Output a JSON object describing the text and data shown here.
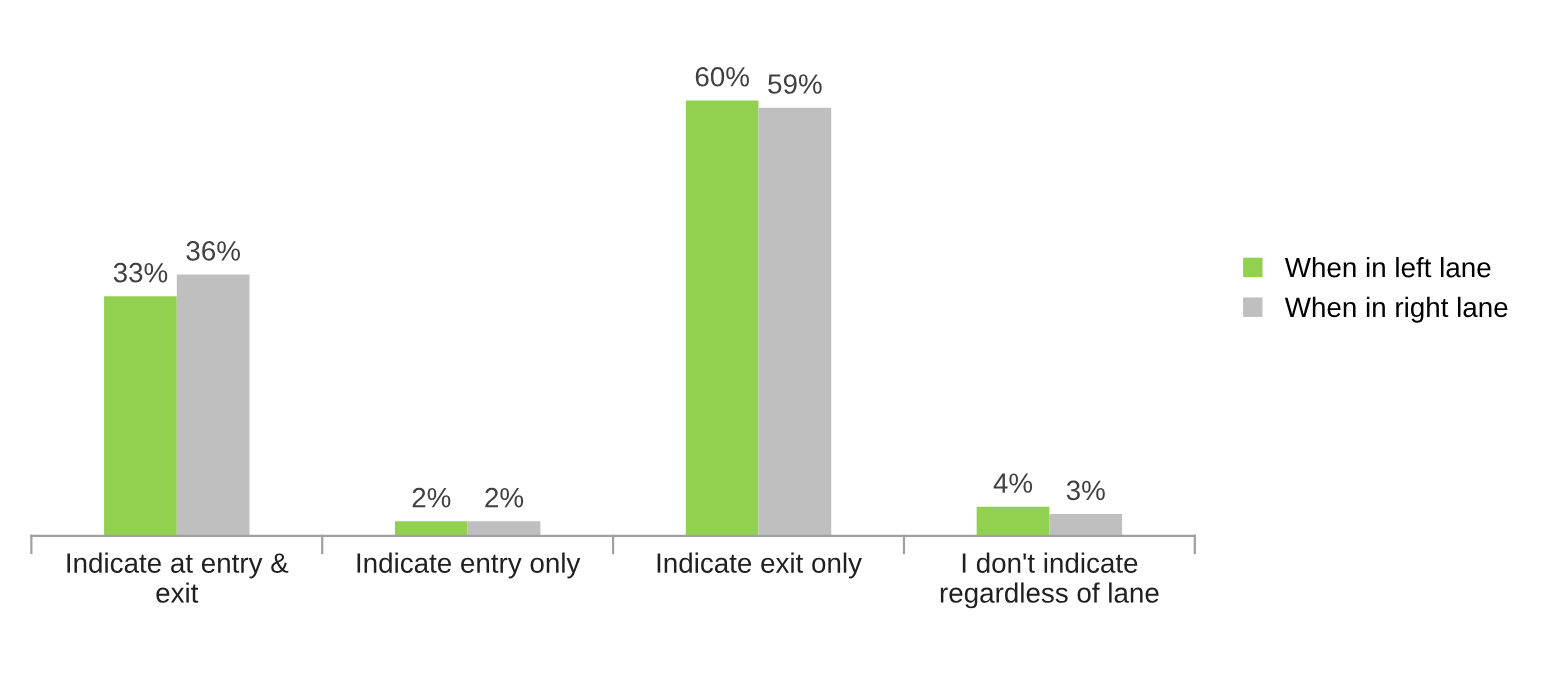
{
  "chart_data": {
    "type": "bar",
    "categories": [
      "Indicate at entry &\nexit",
      "Indicate entry only",
      "Indicate exit only",
      "I don't indicate\nregardless of lane"
    ],
    "series": [
      {
        "name": "When in left lane",
        "color": "#92d050",
        "values": [
          33,
          2,
          60,
          4
        ],
        "value_labels": [
          "33%",
          "2%",
          "60%",
          "4%"
        ]
      },
      {
        "name": "When in right lane",
        "color": "#bfbfbf",
        "values": [
          36,
          2,
          59,
          3
        ],
        "value_labels": [
          "36%",
          "2%",
          "59%",
          "3%"
        ]
      }
    ],
    "legend": "right"
  }
}
